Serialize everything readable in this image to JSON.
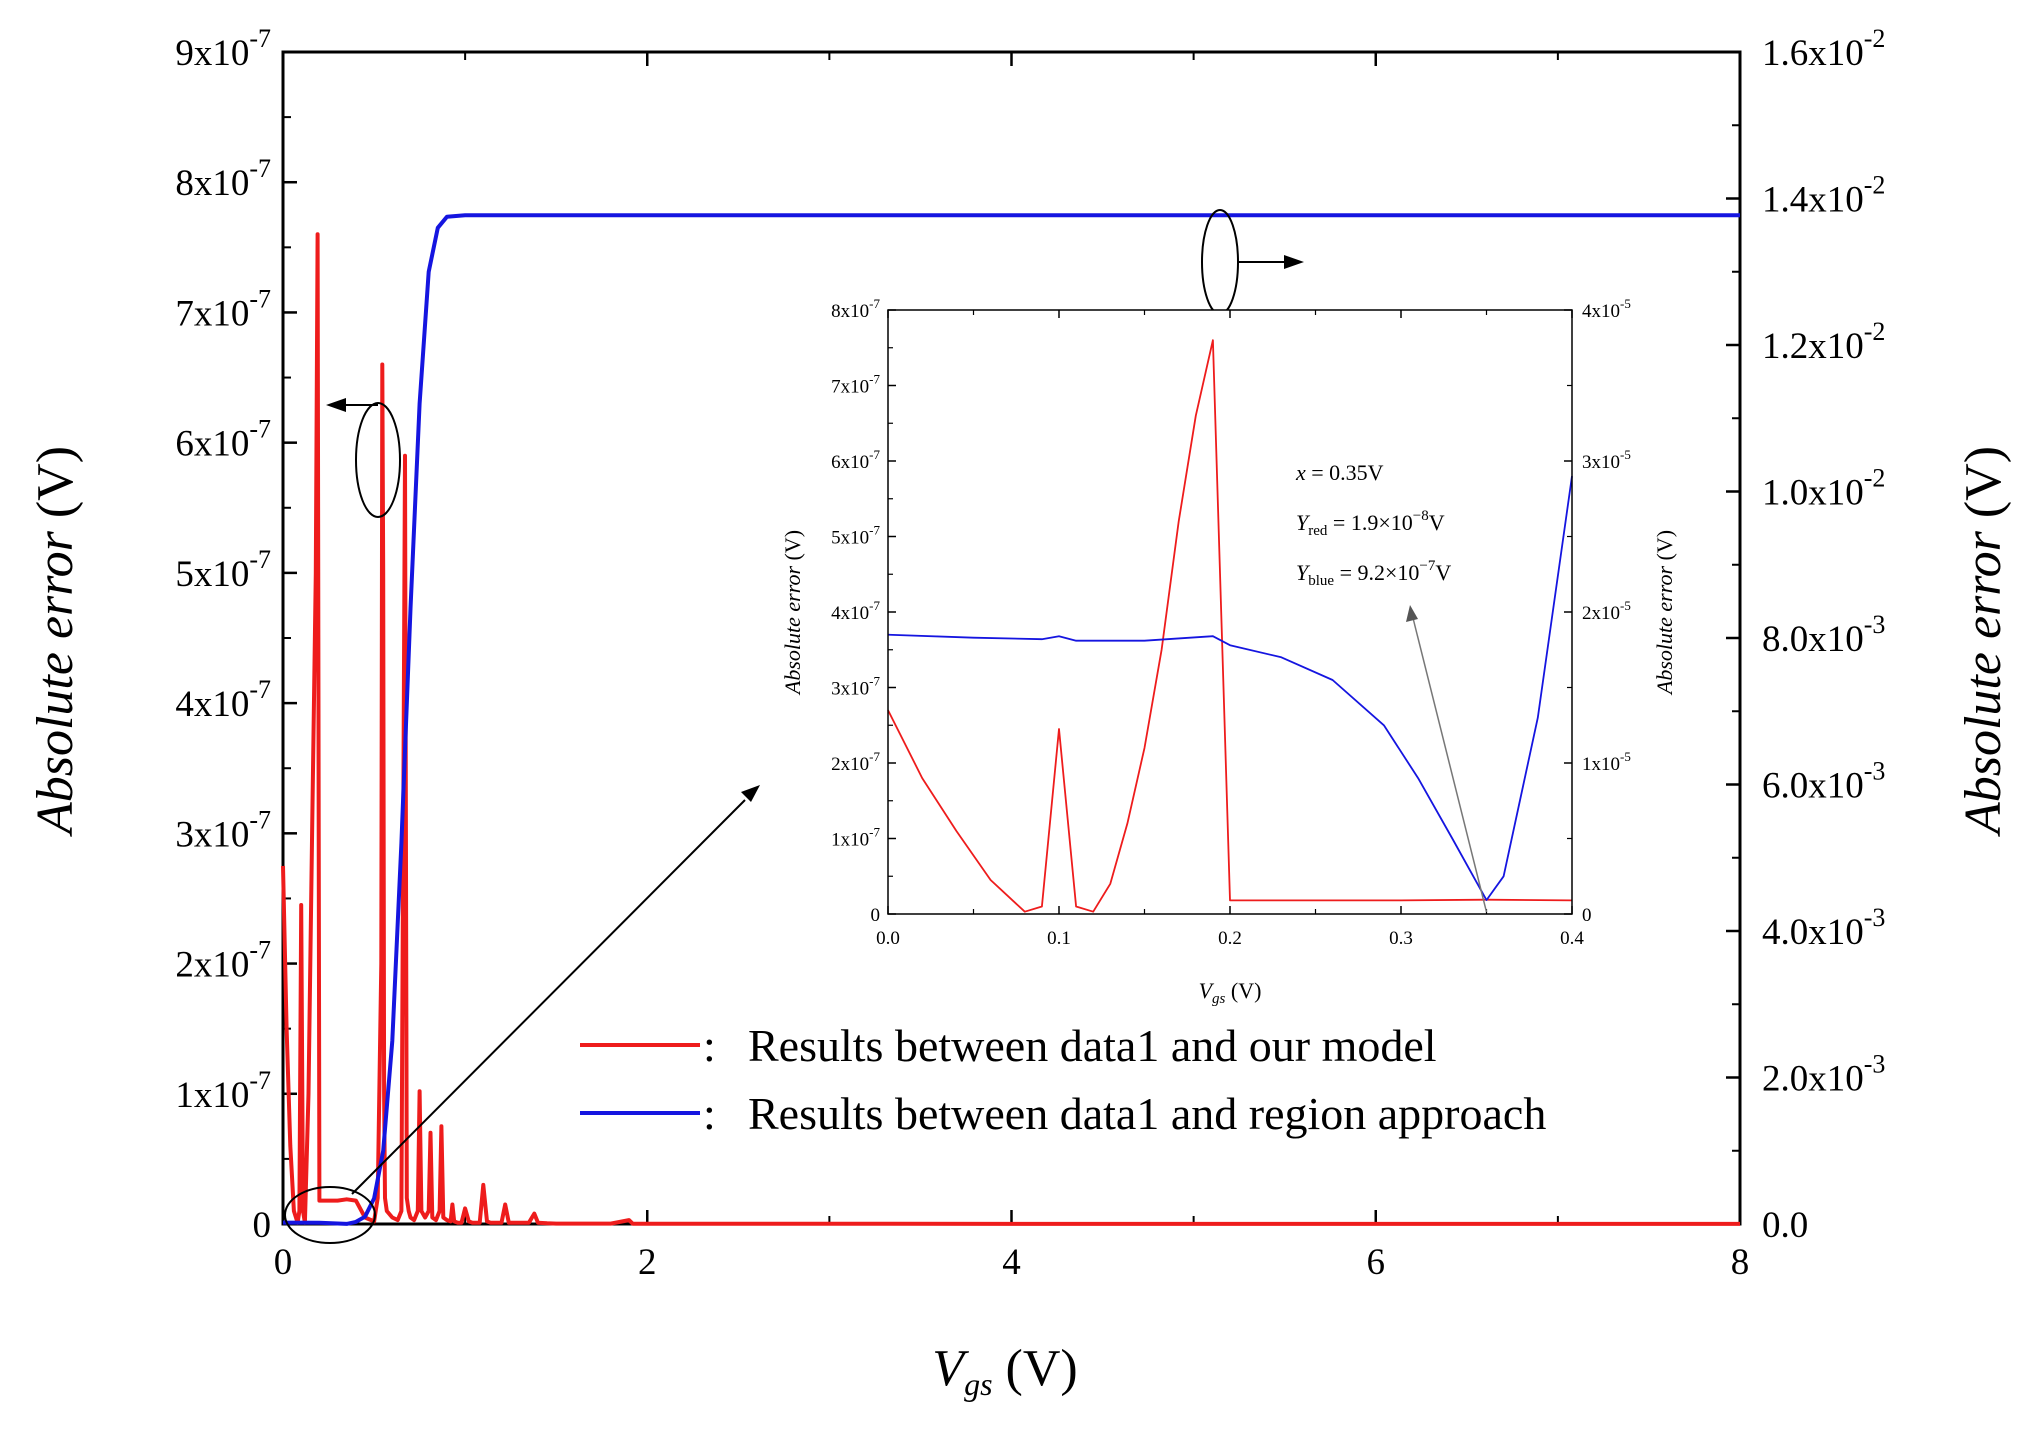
{
  "chart_data": [
    {
      "id": "main",
      "type": "line",
      "xlabel": "V",
      "xlabel_sub": "gs",
      "xlabel_unit": " (V)",
      "ylabel": "Absolute error",
      "ylabel_unit": " (V)",
      "y2label": "Absolute error",
      "y2label_unit": " (V)",
      "xlim": [
        0,
        8
      ],
      "ylim": [
        0,
        9e-07
      ],
      "y2lim": [
        0,
        0.016
      ],
      "x_ticks": [
        {
          "v": 0,
          "label": "0"
        },
        {
          "v": 2,
          "label": "2"
        },
        {
          "v": 4,
          "label": "4"
        },
        {
          "v": 6,
          "label": "6"
        },
        {
          "v": 8,
          "label": "8"
        }
      ],
      "y_ticks": [
        {
          "v": 0,
          "label": "0",
          "exp": ""
        },
        {
          "v": 1e-07,
          "label": "1x10",
          "exp": "-7"
        },
        {
          "v": 2e-07,
          "label": "2x10",
          "exp": "-7"
        },
        {
          "v": 3e-07,
          "label": "3x10",
          "exp": "-7"
        },
        {
          "v": 4e-07,
          "label": "4x10",
          "exp": "-7"
        },
        {
          "v": 5e-07,
          "label": "5x10",
          "exp": "-7"
        },
        {
          "v": 6e-07,
          "label": "6x10",
          "exp": "-7"
        },
        {
          "v": 7e-07,
          "label": "7x10",
          "exp": "-7"
        },
        {
          "v": 8e-07,
          "label": "8x10",
          "exp": "-7"
        },
        {
          "v": 9e-07,
          "label": "9x10",
          "exp": "-7"
        }
      ],
      "y2_ticks": [
        {
          "v": 0,
          "label": "0.0",
          "exp": ""
        },
        {
          "v": 0.002,
          "label": "2.0x10",
          "exp": "-3"
        },
        {
          "v": 0.004,
          "label": "4.0x10",
          "exp": "-3"
        },
        {
          "v": 0.006,
          "label": "6.0x10",
          "exp": "-3"
        },
        {
          "v": 0.008,
          "label": "8.0x10",
          "exp": "-3"
        },
        {
          "v": 0.01,
          "label": "1.0x10",
          "exp": "-2"
        },
        {
          "v": 0.012,
          "label": "1.2x10",
          "exp": "-2"
        },
        {
          "v": 0.014,
          "label": "1.4x10",
          "exp": "-2"
        },
        {
          "v": 0.016,
          "label": "1.6x10",
          "exp": "-2"
        }
      ],
      "series": [
        {
          "name": "Results between data1 and our model",
          "color": "#ee1c1c",
          "axis": "left",
          "x": [
            0,
            0.02,
            0.04,
            0.06,
            0.08,
            0.09,
            0.1,
            0.11,
            0.12,
            0.14,
            0.16,
            0.18,
            0.19,
            0.2,
            0.25,
            0.3,
            0.35,
            0.4,
            0.45,
            0.5,
            0.52,
            0.54,
            0.545,
            0.55,
            0.555,
            0.56,
            0.57,
            0.6,
            0.63,
            0.65,
            0.67,
            0.68,
            0.69,
            0.7,
            0.72,
            0.74,
            0.75,
            0.76,
            0.78,
            0.8,
            0.81,
            0.82,
            0.84,
            0.86,
            0.87,
            0.88,
            0.9,
            0.92,
            0.93,
            0.94,
            0.96,
            0.98,
            1.0,
            1.02,
            1.04,
            1.06,
            1.08,
            1.1,
            1.12,
            1.14,
            1.2,
            1.22,
            1.24,
            1.3,
            1.35,
            1.38,
            1.4,
            1.45,
            1.5,
            1.6,
            1.8,
            1.9,
            1.92,
            2.0,
            2.5,
            3.0,
            4.0,
            5.0,
            6.0,
            7.0,
            8.0
          ],
          "y": [
            2.75e-07,
            1.5e-07,
            6e-08,
            1e-08,
            1e-09,
            1e-08,
            2.45e-07,
            1e-08,
            1e-09,
            1e-07,
            3e-07,
            5e-07,
            7.6e-07,
            1.8e-08,
            1.8e-08,
            1.8e-08,
            1.9e-08,
            1.8e-08,
            5e-09,
            2e-09,
            2e-08,
            2e-07,
            6.6e-07,
            5e-07,
            1e-07,
            2e-08,
            1e-08,
            5e-09,
            3e-09,
            1e-08,
            5.9e-07,
            2e-08,
            1e-08,
            5e-09,
            3e-09,
            1e-08,
            1.02e-07,
            1e-08,
            5e-09,
            1e-08,
            7e-08,
            5e-09,
            3e-09,
            1e-08,
            7.5e-08,
            5e-09,
            3e-09,
            2e-09,
            1.5e-08,
            2e-09,
            1e-09,
            1e-09,
            1.2e-08,
            2e-09,
            1e-09,
            1e-09,
            1e-09,
            3e-08,
            2e-09,
            1e-09,
            1e-09,
            1.5e-08,
            1e-09,
            1e-09,
            1e-09,
            8e-09,
            1e-09,
            5e-10,
            3e-10,
            3e-10,
            3e-10,
            3e-09,
            2e-10,
            2e-10,
            2e-10,
            2e-10,
            1e-10,
            1e-10,
            1e-10,
            1e-10,
            1e-10
          ]
        },
        {
          "name": "Results between data1 and region approach",
          "color": "#1515e0",
          "axis": "right",
          "x": [
            0,
            0.2,
            0.35,
            0.4,
            0.45,
            0.5,
            0.55,
            0.6,
            0.65,
            0.7,
            0.75,
            0.8,
            0.85,
            0.9,
            1.0,
            1.1,
            2,
            4,
            6,
            8
          ],
          "y": [
            1.85e-05,
            1.8e-05,
            1e-06,
            2.9e-05,
            0.0001,
            0.00035,
            0.001,
            0.0025,
            0.0052,
            0.0084,
            0.0112,
            0.013,
            0.0136,
            0.01375,
            0.01377,
            0.01377,
            0.01377,
            0.01377,
            0.01377,
            0.01377
          ]
        }
      ],
      "legend": {
        "position": "bottom-right",
        "separator": ":"
      }
    },
    {
      "id": "inset",
      "type": "line",
      "xlabel": "V",
      "xlabel_sub": "gs",
      "xlabel_unit": " (V)",
      "ylabel": "Absolute error",
      "ylabel_unit": " (V)",
      "y2label": "Absolute error",
      "y2label_unit": " (V)",
      "xlim": [
        0,
        0.4
      ],
      "ylim": [
        0,
        8e-07
      ],
      "y2lim": [
        0,
        4e-05
      ],
      "x_ticks": [
        {
          "v": 0,
          "label": "0.0"
        },
        {
          "v": 0.1,
          "label": "0.1"
        },
        {
          "v": 0.2,
          "label": "0.2"
        },
        {
          "v": 0.3,
          "label": "0.3"
        },
        {
          "v": 0.4,
          "label": "0.4"
        }
      ],
      "y_ticks": [
        {
          "v": 0,
          "label": "0",
          "exp": ""
        },
        {
          "v": 1e-07,
          "label": "1x10",
          "exp": "-7"
        },
        {
          "v": 2e-07,
          "label": "2x10",
          "exp": "-7"
        },
        {
          "v": 3e-07,
          "label": "3x10",
          "exp": "-7"
        },
        {
          "v": 4e-07,
          "label": "4x10",
          "exp": "-7"
        },
        {
          "v": 5e-07,
          "label": "5x10",
          "exp": "-7"
        },
        {
          "v": 6e-07,
          "label": "6x10",
          "exp": "-7"
        },
        {
          "v": 7e-07,
          "label": "7x10",
          "exp": "-7"
        },
        {
          "v": 8e-07,
          "label": "8x10",
          "exp": "-7"
        }
      ],
      "y2_ticks": [
        {
          "v": 0,
          "label": "0",
          "exp": ""
        },
        {
          "v": 1e-05,
          "label": "1x10",
          "exp": "-5"
        },
        {
          "v": 2e-05,
          "label": "2x10",
          "exp": "-5"
        },
        {
          "v": 3e-05,
          "label": "3x10",
          "exp": "-5"
        },
        {
          "v": 4e-05,
          "label": "4x10",
          "exp": "-5"
        }
      ],
      "series": [
        {
          "name": "red",
          "color": "#ee1c1c",
          "axis": "left",
          "x": [
            0,
            0.02,
            0.04,
            0.06,
            0.08,
            0.09,
            0.1,
            0.11,
            0.12,
            0.13,
            0.14,
            0.15,
            0.16,
            0.17,
            0.18,
            0.19,
            0.2,
            0.25,
            0.3,
            0.35,
            0.4
          ],
          "y": [
            2.7e-07,
            1.8e-07,
            1.1e-07,
            4.5e-08,
            3e-09,
            1e-08,
            2.45e-07,
            1e-08,
            3e-09,
            4e-08,
            1.2e-07,
            2.2e-07,
            3.5e-07,
            5.2e-07,
            6.6e-07,
            7.6e-07,
            1.8e-08,
            1.8e-08,
            1.8e-08,
            1.9e-08,
            1.8e-08
          ]
        },
        {
          "name": "blue",
          "color": "#1515e0",
          "axis": "right",
          "x": [
            0,
            0.05,
            0.09,
            0.1,
            0.11,
            0.15,
            0.19,
            0.2,
            0.23,
            0.26,
            0.29,
            0.31,
            0.33,
            0.35,
            0.36,
            0.38,
            0.4
          ],
          "y": [
            1.85e-05,
            1.83e-05,
            1.82e-05,
            1.84e-05,
            1.81e-05,
            1.81e-05,
            1.84e-05,
            1.78e-05,
            1.7e-05,
            1.55e-05,
            1.25e-05,
            9e-06,
            5e-06,
            9.2e-07,
            2.5e-06,
            1.3e-05,
            2.9e-05
          ]
        }
      ],
      "annotation": {
        "line1_var": "x",
        "line1_val": " = 0.35V",
        "line2_var": "Y",
        "line2_sub": "red",
        "line2_val": " = 1.9×10",
        "line2_exp": "−8",
        "line2_unit": "V",
        "line3_var": "Y",
        "line3_sub": "blue",
        "line3_val": " = 9.2×10",
        "line3_exp": "−7",
        "line3_unit": "V",
        "points_to": {
          "x": 0.35,
          "y": 0
        }
      }
    }
  ]
}
